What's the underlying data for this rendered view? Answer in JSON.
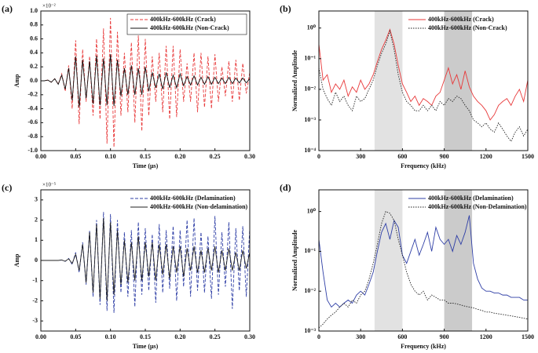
{
  "chart_data": [
    {
      "type": "line",
      "panel_label": "(a)",
      "scale_label": "×10⁻²",
      "x_label": "Time (μs)",
      "y_label": "Amp",
      "xlim": [
        0,
        0.3
      ],
      "ylim": [
        -1,
        1
      ],
      "xticks": [
        {
          "value": 0,
          "label": "0.00"
        },
        {
          "value": 0.05,
          "label": "0.05"
        },
        {
          "value": 0.1,
          "label": "0.10"
        },
        {
          "value": 0.15,
          "label": "0.15"
        },
        {
          "value": 0.2,
          "label": "0.20"
        },
        {
          "value": 0.25,
          "label": "0.25"
        },
        {
          "value": 0.3,
          "label": "0.30"
        }
      ],
      "yticks": [
        {
          "value": -1,
          "label": "-1.0"
        },
        {
          "value": -0.8,
          "label": "-0.8"
        },
        {
          "value": -0.6,
          "label": "-0.6"
        },
        {
          "value": -0.4,
          "label": "-0.4"
        },
        {
          "value": -0.2,
          "label": "-0.2"
        },
        {
          "value": 0,
          "label": "0.0"
        },
        {
          "value": 0.2,
          "label": "0.2"
        },
        {
          "value": 0.4,
          "label": "0.4"
        },
        {
          "value": 0.6,
          "label": "0.6"
        },
        {
          "value": 0.8,
          "label": "0.8"
        },
        {
          "value": 1,
          "label": "1.0"
        }
      ],
      "legend": "upper right",
      "legend_frame": true,
      "x": [
        0,
        0.005,
        0.01,
        0.015,
        0.02,
        0.025,
        0.03,
        0.035,
        0.04,
        0.045,
        0.05,
        0.055,
        0.06,
        0.065,
        0.07,
        0.075,
        0.08,
        0.085,
        0.09,
        0.095,
        0.1,
        0.105,
        0.11,
        0.115,
        0.12,
        0.125,
        0.13,
        0.135,
        0.14,
        0.145,
        0.15,
        0.155,
        0.16,
        0.165,
        0.17,
        0.175,
        0.18,
        0.185,
        0.19,
        0.195,
        0.2,
        0.205,
        0.21,
        0.215,
        0.22,
        0.225,
        0.23,
        0.235,
        0.24,
        0.245,
        0.25,
        0.255,
        0.26,
        0.265,
        0.27,
        0.275,
        0.28,
        0.285,
        0.29,
        0.295,
        0.3
      ],
      "series": [
        {
          "name": "400kHz-600kHz (Crack)",
          "color": "#e8393a",
          "dash": "dashed",
          "values": [
            0,
            0,
            0.01,
            -0.02,
            0.03,
            -0.05,
            0.1,
            -0.15,
            0.22,
            -0.4,
            0.58,
            -0.62,
            0.45,
            -0.3,
            0.35,
            -0.5,
            0.6,
            -0.55,
            0.75,
            -0.9,
            0.9,
            -0.95,
            0.7,
            -0.5,
            0.4,
            -0.45,
            0.55,
            -0.6,
            0.65,
            -0.72,
            0.6,
            -0.5,
            0.35,
            -0.3,
            0.4,
            -0.45,
            0.5,
            -0.55,
            0.5,
            -0.52,
            0.45,
            -0.3,
            0.25,
            -0.3,
            0.4,
            -0.45,
            0.4,
            -0.38,
            0.35,
            -0.4,
            0.38,
            -0.3,
            0.2,
            -0.22,
            0.28,
            -0.3,
            0.3,
            -0.28,
            0.25,
            -0.18,
            0.12
          ]
        },
        {
          "name": "400kHz-600kHz (Non-Crack)",
          "color": "#111111",
          "dash": "solid",
          "values": [
            0,
            0,
            0.01,
            -0.02,
            0.03,
            -0.05,
            0.08,
            -0.12,
            0.18,
            -0.28,
            0.35,
            -0.38,
            0.3,
            -0.25,
            0.28,
            -0.33,
            0.36,
            -0.35,
            0.32,
            -0.35,
            0.38,
            -0.36,
            0.3,
            -0.22,
            0.18,
            -0.2,
            0.22,
            -0.2,
            0.18,
            -0.2,
            0.2,
            -0.15,
            0.12,
            -0.1,
            0.1,
            -0.12,
            0.12,
            -0.1,
            0.08,
            -0.1,
            0.1,
            -0.07,
            0.06,
            -0.06,
            0.07,
            -0.06,
            0.05,
            -0.05,
            0.06,
            -0.05,
            0.05,
            -0.04,
            0.04,
            -0.04,
            0.05,
            -0.04,
            0.04,
            -0.03,
            0.04,
            -0.03,
            0.03
          ]
        }
      ]
    },
    {
      "type": "line",
      "panel_label": "(b)",
      "x_label": "Frequency (kHz)",
      "y_label": "Normalized Amplitude",
      "log_y": true,
      "xlim": [
        0,
        1500
      ],
      "ylim": [
        0.0001,
        3.6
      ],
      "xticks": [
        0,
        300,
        600,
        900,
        1200,
        1500
      ],
      "yticks": [
        {
          "value": 0.0001,
          "label": "10⁻⁴"
        },
        {
          "value": 0.001,
          "label": "10⁻³"
        },
        {
          "value": 0.01,
          "label": "10⁻²"
        },
        {
          "value": 0.1,
          "label": "10⁻¹"
        },
        {
          "value": 1,
          "label": "10⁰"
        }
      ],
      "bands": [
        {
          "xlim": [
            400,
            600
          ],
          "color": "#e2e2e2"
        },
        {
          "xlim": [
            900,
            1100
          ],
          "color": "#cbcbcb"
        }
      ],
      "legend": "upper right",
      "x": [
        0,
        30,
        60,
        90,
        120,
        150,
        180,
        210,
        240,
        270,
        300,
        330,
        360,
        390,
        420,
        450,
        480,
        510,
        540,
        570,
        600,
        630,
        660,
        690,
        720,
        750,
        780,
        810,
        840,
        870,
        900,
        930,
        960,
        990,
        1020,
        1050,
        1080,
        1110,
        1140,
        1170,
        1200,
        1230,
        1260,
        1290,
        1320,
        1350,
        1380,
        1410,
        1440,
        1470,
        1500
      ],
      "series": [
        {
          "name": "400kHz-600kHz (Crack)",
          "color": "#e8393a",
          "dash": "solid",
          "values": [
            0.3,
            0.02,
            0.03,
            0.008,
            0.015,
            0.01,
            0.02,
            0.006,
            0.012,
            0.008,
            0.02,
            0.01,
            0.015,
            0.03,
            0.08,
            0.2,
            0.4,
            0.9,
            0.3,
            0.06,
            0.015,
            0.008,
            0.004,
            0.006,
            0.003,
            0.005,
            0.004,
            0.003,
            0.006,
            0.008,
            0.02,
            0.05,
            0.015,
            0.03,
            0.01,
            0.04,
            0.012,
            0.006,
            0.004,
            0.003,
            0.002,
            0.001,
            0.0015,
            0.003,
            0.004,
            0.005,
            0.003,
            0.006,
            0.01,
            0.004,
            0.02
          ]
        },
        {
          "name": "400kHz-600kHz (Non-Crack)",
          "color": "#222222",
          "dash": "dotted",
          "values": [
            0.05,
            0.01,
            0.005,
            0.003,
            0.008,
            0.004,
            0.006,
            0.003,
            0.002,
            0.006,
            0.004,
            0.005,
            0.01,
            0.02,
            0.06,
            0.15,
            0.3,
            0.8,
            0.2,
            0.03,
            0.008,
            0.004,
            0.003,
            0.002,
            0.002,
            0.003,
            0.002,
            0.003,
            0.002,
            0.004,
            0.003,
            0.005,
            0.004,
            0.006,
            0.005,
            0.003,
            0.002,
            0.001,
            0.0008,
            0.0006,
            0.0008,
            0.0005,
            0.0004,
            0.0008,
            0.0005,
            0.0003,
            0.0002,
            0.0004,
            0.0006,
            0.0003,
            0.0005
          ]
        }
      ]
    },
    {
      "type": "line",
      "panel_label": "(c)",
      "scale_label": "×10⁻⁵",
      "x_label": "Time (μs)",
      "y_label": "Amp",
      "xlim": [
        0,
        0.3
      ],
      "ylim": [
        -3.5,
        3.5
      ],
      "xticks": [
        {
          "value": 0,
          "label": "0.00"
        },
        {
          "value": 0.05,
          "label": "0.05"
        },
        {
          "value": 0.1,
          "label": "0.10"
        },
        {
          "value": 0.15,
          "label": "0.15"
        },
        {
          "value": 0.2,
          "label": "0.20"
        },
        {
          "value": 0.25,
          "label": "0.25"
        },
        {
          "value": 0.3,
          "label": "0.30"
        }
      ],
      "yticks": [
        -3,
        -2,
        -1,
        0,
        1,
        2,
        3
      ],
      "legend": "upper right",
      "x": [
        0,
        0.005,
        0.01,
        0.015,
        0.02,
        0.025,
        0.03,
        0.035,
        0.04,
        0.045,
        0.05,
        0.055,
        0.06,
        0.065,
        0.07,
        0.075,
        0.08,
        0.085,
        0.09,
        0.095,
        0.1,
        0.105,
        0.11,
        0.115,
        0.12,
        0.125,
        0.13,
        0.135,
        0.14,
        0.145,
        0.15,
        0.155,
        0.16,
        0.165,
        0.17,
        0.175,
        0.18,
        0.185,
        0.19,
        0.195,
        0.2,
        0.205,
        0.21,
        0.215,
        0.22,
        0.225,
        0.23,
        0.235,
        0.24,
        0.245,
        0.25,
        0.255,
        0.26,
        0.265,
        0.27,
        0.275,
        0.28,
        0.285,
        0.29,
        0.295,
        0.3
      ],
      "series": [
        {
          "name": "400kHz-600kHz (Delamination)",
          "color": "#2f3fa6",
          "dash": "dashed",
          "values": [
            0,
            0,
            0,
            0,
            0,
            0,
            0.02,
            -0.05,
            0.1,
            -0.2,
            0.4,
            -0.6,
            0.9,
            -1.2,
            1.5,
            -1.8,
            2.0,
            -2.2,
            2.4,
            -2.5,
            2.3,
            -2.6,
            2.0,
            -1.6,
            1.4,
            -1.8,
            1.5,
            -2.3,
            1.9,
            -1.7,
            1.6,
            -1.5,
            1.3,
            -2.1,
            1.8,
            -1.6,
            1.5,
            -1.4,
            1.7,
            -2.0,
            1.5,
            -1.3,
            2.0,
            -1.8,
            2.1,
            -1.5,
            1.4,
            -1.6,
            1.2,
            -1.9,
            2.2,
            -1.7,
            1.4,
            -1.3,
            1.9,
            -2.4,
            1.6,
            -1.5,
            1.7,
            -1.8,
            1.6
          ]
        },
        {
          "name": "400kHz-600kHz (Non-delamination)",
          "color": "#222222",
          "dash": "solid",
          "values": [
            0,
            0,
            0,
            0,
            0,
            0,
            0.02,
            -0.04,
            0.08,
            -0.15,
            0.3,
            -0.5,
            0.8,
            -1.1,
            1.4,
            -1.6,
            1.8,
            -1.9,
            2.1,
            -2.0,
            1.9,
            -1.7,
            1.5,
            -1.2,
            1.0,
            -1.1,
            0.9,
            -1.0,
            1.2,
            -1.0,
            0.9,
            -0.8,
            0.9,
            -1.0,
            0.8,
            -0.7,
            0.8,
            -0.9,
            0.7,
            -0.6,
            0.7,
            -0.8,
            0.6,
            -0.5,
            0.7,
            -0.6,
            0.5,
            -0.6,
            0.6,
            -0.5,
            0.7,
            -0.6,
            0.5,
            -0.5,
            0.6,
            -0.5,
            0.4,
            -0.5,
            0.5,
            -0.4,
            0.4
          ]
        }
      ]
    },
    {
      "type": "line",
      "panel_label": "(d)",
      "x_label": "Frequency (kHz)",
      "y_label": "Normalized Amplitude",
      "log_y": true,
      "xlim": [
        0,
        1500
      ],
      "ylim": [
        0.001,
        3.5
      ],
      "xticks": [
        0,
        300,
        600,
        900,
        1200,
        1500
      ],
      "yticks": [
        {
          "value": 0.001,
          "label": "10⁻³"
        },
        {
          "value": 0.01,
          "label": "10⁻²"
        },
        {
          "value": 0.1,
          "label": "10⁻¹"
        },
        {
          "value": 1,
          "label": "10⁰"
        }
      ],
      "bands": [
        {
          "xlim": [
            400,
            600
          ],
          "color": "#e2e2e2"
        },
        {
          "xlim": [
            900,
            1100
          ],
          "color": "#cbcbcb"
        }
      ],
      "legend": "upper right",
      "x": [
        0,
        30,
        60,
        90,
        120,
        150,
        180,
        210,
        240,
        270,
        300,
        330,
        360,
        390,
        420,
        450,
        480,
        510,
        540,
        570,
        600,
        630,
        660,
        690,
        720,
        750,
        780,
        810,
        840,
        870,
        900,
        930,
        960,
        990,
        1020,
        1050,
        1080,
        1110,
        1140,
        1170,
        1200,
        1230,
        1260,
        1290,
        1320,
        1350,
        1380,
        1410,
        1440,
        1470,
        1500
      ],
      "series": [
        {
          "name": "400kHz-600kHz (Delamination)",
          "color": "#2f3fa6",
          "dash": "solid",
          "values": [
            0.2,
            0.03,
            0.006,
            0.004,
            0.005,
            0.004,
            0.005,
            0.006,
            0.005,
            0.008,
            0.01,
            0.008,
            0.015,
            0.03,
            0.1,
            0.3,
            0.5,
            0.2,
            0.6,
            0.4,
            0.08,
            0.05,
            0.1,
            0.2,
            0.08,
            0.15,
            0.3,
            0.1,
            0.4,
            0.2,
            0.15,
            0.2,
            0.1,
            0.25,
            0.15,
            0.3,
            0.8,
            0.05,
            0.02,
            0.012,
            0.01,
            0.01,
            0.009,
            0.009,
            0.008,
            0.008,
            0.007,
            0.007,
            0.007,
            0.006,
            0.006
          ]
        },
        {
          "name": "400kHz-600kHz (Non-Delamination)",
          "color": "#222222",
          "dash": "dotted",
          "values": [
            0.0012,
            0.0015,
            0.002,
            0.0025,
            0.003,
            0.004,
            0.005,
            0.004,
            0.006,
            0.005,
            0.008,
            0.01,
            0.02,
            0.05,
            0.15,
            0.5,
            1.0,
            0.9,
            0.6,
            0.2,
            0.08,
            0.03,
            0.015,
            0.01,
            0.008,
            0.01,
            0.006,
            0.008,
            0.007,
            0.006,
            0.006,
            0.005,
            0.005,
            0.0048,
            0.0045,
            0.0042,
            0.004,
            0.0038,
            0.0035,
            0.0033,
            0.003,
            0.003,
            0.0028,
            0.0027,
            0.0026,
            0.0025,
            0.0024,
            0.0023,
            0.0022,
            0.0021,
            0.002
          ]
        }
      ]
    }
  ]
}
